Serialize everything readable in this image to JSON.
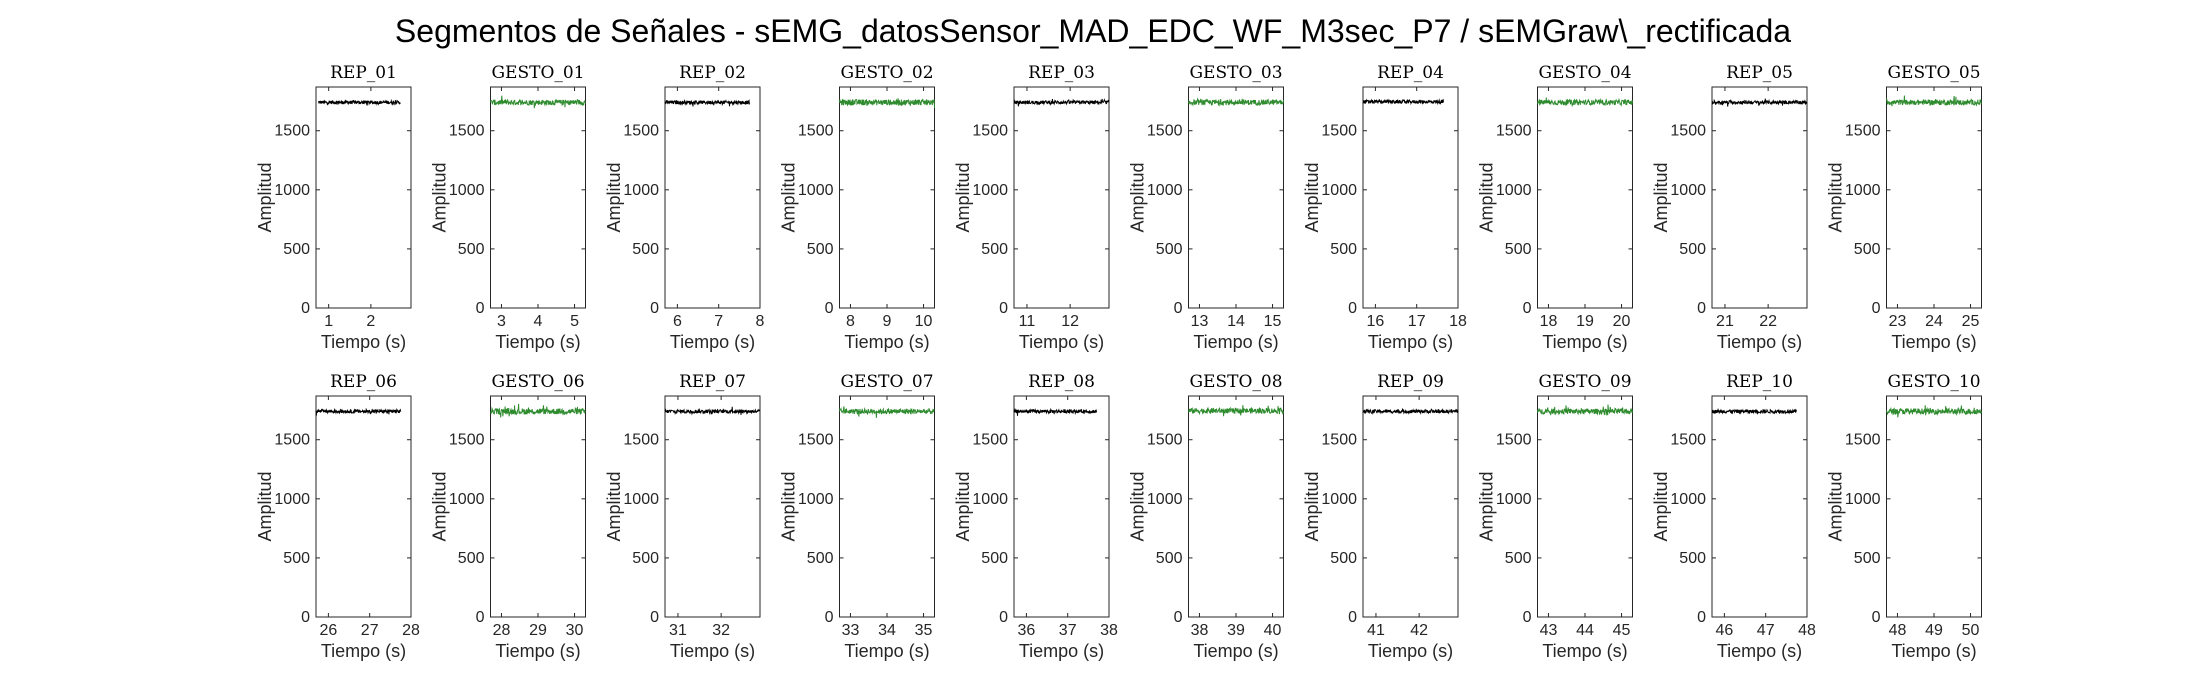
{
  "figure": {
    "title": "Segmentos de Señales - sEMG_datosSensor_MAD_EDC_WF_M3sec_P7 / sEMGraw\\_rectificada"
  },
  "chart_data": {
    "type": "line",
    "layout": "2 rows x 10 columns of subplots",
    "xlabel": "Tiempo (s)",
    "ylabel": "Amplitud",
    "ylim": [
      0,
      1870
    ],
    "yticks": [
      0,
      500,
      1000,
      1500
    ],
    "grid": false,
    "colors": {
      "rep": "#000000",
      "gesto": "#2e8b2e"
    },
    "panels": [
      {
        "title": "REP_01",
        "kind": "rep",
        "xlim": [
          0.7,
          2.95
        ],
        "xticks": [
          1,
          2
        ],
        "x_range": [
          0.75,
          2.7
        ],
        "level": 1740,
        "noise": 30
      },
      {
        "title": "GESTO_01",
        "kind": "gesto",
        "xlim": [
          2.7,
          5.3
        ],
        "xticks": [
          3,
          4,
          5
        ],
        "x_range": [
          2.7,
          5.3
        ],
        "level": 1740,
        "noise": 45
      },
      {
        "title": "REP_02",
        "kind": "rep",
        "xlim": [
          5.7,
          8.0
        ],
        "xticks": [
          6,
          7,
          8
        ],
        "x_range": [
          5.7,
          7.75
        ],
        "level": 1740,
        "noise": 30
      },
      {
        "title": "GESTO_02",
        "kind": "gesto",
        "xlim": [
          7.7,
          10.3
        ],
        "xticks": [
          8,
          9,
          10
        ],
        "x_range": [
          7.7,
          10.3
        ],
        "level": 1740,
        "noise": 50
      },
      {
        "title": "REP_03",
        "kind": "rep",
        "xlim": [
          10.7,
          12.9
        ],
        "xticks": [
          11,
          12
        ],
        "x_range": [
          10.7,
          12.9
        ],
        "level": 1740,
        "noise": 30
      },
      {
        "title": "GESTO_03",
        "kind": "gesto",
        "xlim": [
          12.7,
          15.3
        ],
        "xticks": [
          13,
          14,
          15
        ],
        "x_range": [
          12.7,
          15.3
        ],
        "level": 1740,
        "noise": 45
      },
      {
        "title": "REP_04",
        "kind": "rep",
        "xlim": [
          15.7,
          18.0
        ],
        "xticks": [
          16,
          17,
          18
        ],
        "x_range": [
          15.7,
          17.65
        ],
        "level": 1745,
        "noise": 30
      },
      {
        "title": "GESTO_04",
        "kind": "gesto",
        "xlim": [
          17.7,
          20.3
        ],
        "xticks": [
          18,
          19,
          20
        ],
        "x_range": [
          17.7,
          20.3
        ],
        "level": 1740,
        "noise": 45
      },
      {
        "title": "REP_05",
        "kind": "rep",
        "xlim": [
          20.7,
          22.9
        ],
        "xticks": [
          21,
          22
        ],
        "x_range": [
          20.7,
          22.9
        ],
        "level": 1740,
        "noise": 30
      },
      {
        "title": "GESTO_05",
        "kind": "gesto",
        "xlim": [
          22.7,
          25.3
        ],
        "xticks": [
          23,
          24,
          25
        ],
        "x_range": [
          22.7,
          25.3
        ],
        "level": 1740,
        "noise": 45
      },
      {
        "title": "REP_06",
        "kind": "rep",
        "xlim": [
          25.7,
          28.0
        ],
        "xticks": [
          26,
          27,
          28
        ],
        "x_range": [
          25.7,
          27.75
        ],
        "level": 1740,
        "noise": 30
      },
      {
        "title": "GESTO_06",
        "kind": "gesto",
        "xlim": [
          27.7,
          30.3
        ],
        "xticks": [
          28,
          29,
          30
        ],
        "x_range": [
          27.7,
          30.3
        ],
        "level": 1740,
        "noise": 50
      },
      {
        "title": "REP_07",
        "kind": "rep",
        "xlim": [
          30.7,
          32.9
        ],
        "xticks": [
          31,
          32
        ],
        "x_range": [
          30.7,
          32.9
        ],
        "level": 1740,
        "noise": 30
      },
      {
        "title": "GESTO_07",
        "kind": "gesto",
        "xlim": [
          32.7,
          35.3
        ],
        "xticks": [
          33,
          34,
          35
        ],
        "x_range": [
          32.7,
          35.3
        ],
        "level": 1740,
        "noise": 45
      },
      {
        "title": "REP_08",
        "kind": "rep",
        "xlim": [
          35.7,
          38.0
        ],
        "xticks": [
          36,
          37,
          38
        ],
        "x_range": [
          35.7,
          37.7
        ],
        "level": 1740,
        "noise": 30
      },
      {
        "title": "GESTO_08",
        "kind": "gesto",
        "xlim": [
          37.7,
          40.3
        ],
        "xticks": [
          38,
          39,
          40
        ],
        "x_range": [
          37.7,
          40.3
        ],
        "level": 1745,
        "noise": 45
      },
      {
        "title": "REP_09",
        "kind": "rep",
        "xlim": [
          40.7,
          42.9
        ],
        "xticks": [
          41,
          42
        ],
        "x_range": [
          40.7,
          42.9
        ],
        "level": 1740,
        "noise": 30
      },
      {
        "title": "GESTO_09",
        "kind": "gesto",
        "xlim": [
          42.7,
          45.3
        ],
        "xticks": [
          43,
          44,
          45
        ],
        "x_range": [
          42.7,
          45.3
        ],
        "level": 1740,
        "noise": 45
      },
      {
        "title": "REP_10",
        "kind": "rep",
        "xlim": [
          45.7,
          48.0
        ],
        "xticks": [
          46,
          47,
          48
        ],
        "x_range": [
          45.7,
          47.75
        ],
        "level": 1740,
        "noise": 30
      },
      {
        "title": "GESTO_10",
        "kind": "gesto",
        "xlim": [
          47.7,
          50.3
        ],
        "xticks": [
          48,
          49,
          50
        ],
        "x_range": [
          47.7,
          50.3
        ],
        "level": 1740,
        "noise": 50
      }
    ]
  }
}
